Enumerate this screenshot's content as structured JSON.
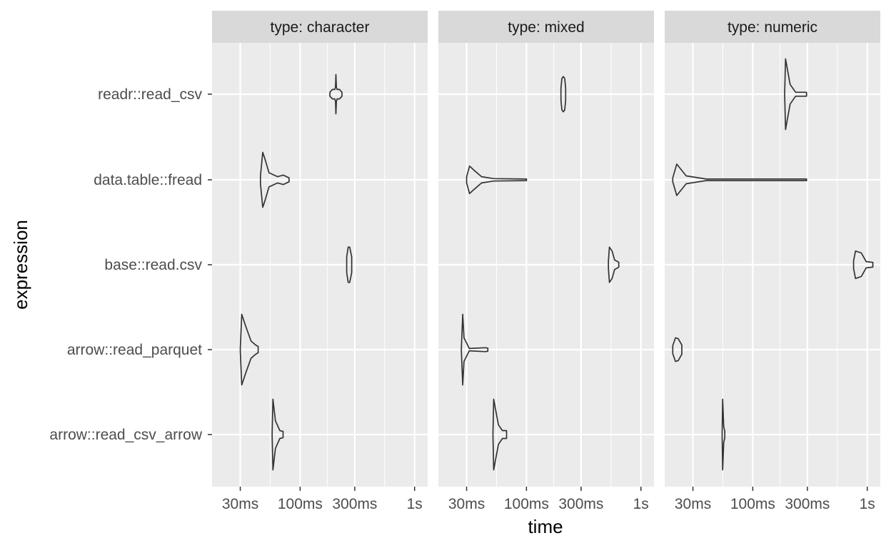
{
  "chart_data": {
    "type": "violin",
    "facet_label_prefix": "type: ",
    "facets": [
      "character",
      "mixed",
      "numeric"
    ],
    "xlabel": "time",
    "ylabel": "expression",
    "x_scale": "log10",
    "x_unit": "ms",
    "xlim": [
      17,
      1300
    ],
    "x_ticks": [
      {
        "value": 30,
        "label": "30ms"
      },
      {
        "value": 100,
        "label": "100ms"
      },
      {
        "value": 300,
        "label": "300ms"
      },
      {
        "value": 1000,
        "label": "1s"
      }
    ],
    "categories": [
      "readr::read_csv",
      "data.table::fread",
      "base::read.csv",
      "arrow::read_parquet",
      "arrow::read_csv_arrow"
    ],
    "panels": [
      {
        "facet": "character",
        "violins": [
          {
            "expression": "readr::read_csv",
            "min": 182,
            "max": 232,
            "profile": [
              [
                0,
                0.05
              ],
              [
                0.2,
                0.12
              ],
              [
                0.4,
                0.12
              ],
              [
                0.46,
                0.18
              ],
              [
                0.5,
                0.5
              ],
              [
                0.54,
                0.18
              ],
              [
                0.6,
                0.12
              ],
              [
                0.8,
                0.12
              ],
              [
                1,
                0.05
              ]
            ]
          },
          {
            "expression": "data.table::fread",
            "min": 45,
            "max": 80,
            "profile": [
              [
                0,
                0.1
              ],
              [
                0.08,
                0.7
              ],
              [
                0.15,
                0.55
              ],
              [
                0.3,
                0.18
              ],
              [
                0.6,
                0.08
              ],
              [
                0.8,
                0.12
              ],
              [
                1,
                0.05
              ]
            ]
          },
          {
            "expression": "base::read.csv",
            "min": 255,
            "max": 282,
            "profile": [
              [
                0,
                0.2
              ],
              [
                0.3,
                0.45
              ],
              [
                0.6,
                0.45
              ],
              [
                1,
                0.2
              ]
            ]
          },
          {
            "expression": "arrow::read_parquet",
            "min": 30,
            "max": 43,
            "profile": [
              [
                0,
                0.05
              ],
              [
                0.08,
                0.9
              ],
              [
                0.3,
                0.6
              ],
              [
                0.6,
                0.22
              ],
              [
                0.85,
                0.12
              ],
              [
                1,
                0.08
              ]
            ]
          },
          {
            "expression": "arrow::read_csv_arrow",
            "min": 57,
            "max": 71,
            "profile": [
              [
                0,
                0.05
              ],
              [
                0.07,
                0.9
              ],
              [
                0.3,
                0.35
              ],
              [
                0.7,
                0.1
              ],
              [
                1,
                0.08
              ]
            ]
          }
        ]
      },
      {
        "facet": "mixed",
        "violins": [
          {
            "expression": "readr::read_csv",
            "min": 200,
            "max": 220,
            "profile": [
              [
                0,
                0.15
              ],
              [
                0.2,
                0.4
              ],
              [
                0.5,
                0.45
              ],
              [
                0.8,
                0.4
              ],
              [
                1,
                0.15
              ]
            ]
          },
          {
            "expression": "data.table::fread",
            "min": 30,
            "max": 100,
            "profile": [
              [
                0,
                0.08
              ],
              [
                0.05,
                0.35
              ],
              [
                0.12,
                0.25
              ],
              [
                0.25,
                0.08
              ],
              [
                0.45,
                0.03
              ],
              [
                1,
                0.02
              ]
            ]
          },
          {
            "expression": "base::read.csv",
            "min": 520,
            "max": 640,
            "profile": [
              [
                0,
                0.1
              ],
              [
                0.1,
                0.45
              ],
              [
                0.35,
                0.35
              ],
              [
                0.6,
                0.12
              ],
              [
                0.9,
                0.08
              ],
              [
                1,
                0.06
              ]
            ]
          },
          {
            "expression": "arrow::read_parquet",
            "min": 27,
            "max": 46,
            "profile": [
              [
                0,
                0.02
              ],
              [
                0.05,
                0.9
              ],
              [
                0.1,
                0.3
              ],
              [
                0.3,
                0.03
              ],
              [
                0.9,
                0.05
              ],
              [
                1,
                0.04
              ]
            ]
          },
          {
            "expression": "arrow::read_csv_arrow",
            "min": 51,
            "max": 67,
            "profile": [
              [
                0,
                0.05
              ],
              [
                0.05,
                0.9
              ],
              [
                0.4,
                0.25
              ],
              [
                0.7,
                0.1
              ],
              [
                1,
                0.1
              ]
            ]
          }
        ]
      },
      {
        "facet": "numeric",
        "violins": [
          {
            "expression": "readr::read_csv",
            "min": 190,
            "max": 295,
            "profile": [
              [
                0,
                0.05
              ],
              [
                0.04,
                0.9
              ],
              [
                0.25,
                0.25
              ],
              [
                0.5,
                0.05
              ],
              [
                1,
                0.05
              ]
            ]
          },
          {
            "expression": "data.table::fread",
            "min": 20,
            "max": 295,
            "profile": [
              [
                0,
                0.05
              ],
              [
                0.03,
                0.4
              ],
              [
                0.1,
                0.1
              ],
              [
                0.25,
                0.02
              ],
              [
                1,
                0.02
              ]
            ]
          },
          {
            "expression": "base::read.csv",
            "min": 760,
            "max": 1120,
            "profile": [
              [
                0,
                0.1
              ],
              [
                0.1,
                0.35
              ],
              [
                0.4,
                0.3
              ],
              [
                0.65,
                0.08
              ],
              [
                1,
                0.06
              ]
            ]
          },
          {
            "expression": "arrow::read_parquet",
            "min": 20,
            "max": 24,
            "profile": [
              [
                0,
                0.1
              ],
              [
                0.3,
                0.3
              ],
              [
                0.6,
                0.28
              ],
              [
                1,
                0.12
              ]
            ]
          },
          {
            "expression": "arrow::read_csv_arrow",
            "min": 54,
            "max": 57,
            "profile": [
              [
                0,
                0.05
              ],
              [
                0.2,
                0.9
              ],
              [
                0.6,
                0.2
              ],
              [
                1,
                0.08
              ]
            ]
          }
        ]
      }
    ]
  }
}
